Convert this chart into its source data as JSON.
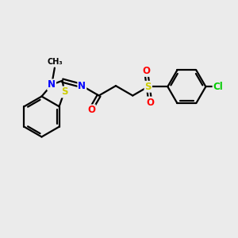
{
  "bg_color": "#ebebeb",
  "bond_color": "#000000",
  "bond_width": 1.6,
  "atom_colors": {
    "S_thio": "#cccc00",
    "S_sulfone": "#cccc00",
    "N": "#0000ff",
    "O": "#ff0000",
    "Cl": "#00cc00",
    "C": "#000000"
  },
  "font_size_atom": 8.5,
  "xlim": [
    0,
    10
  ],
  "ylim": [
    0,
    10
  ]
}
